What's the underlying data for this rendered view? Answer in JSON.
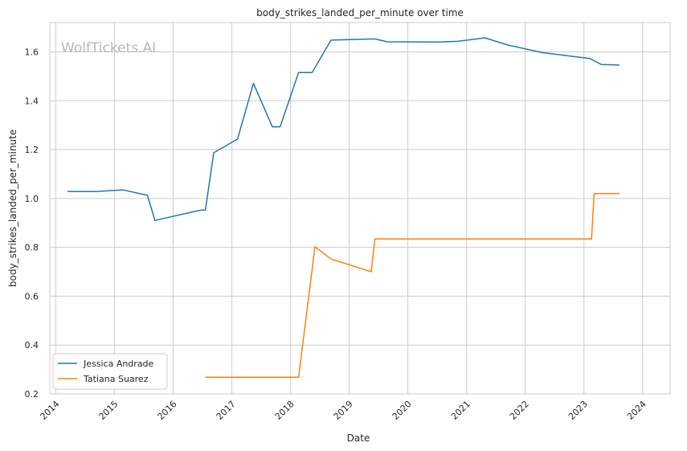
{
  "chart_data": {
    "type": "line",
    "title": "body_strikes_landed_per_minute over time",
    "xlabel": "Date",
    "ylabel": "body_strikes_landed_per_minute",
    "watermark": "WolfTickets.AI",
    "x_ticks": [
      "2014",
      "2015",
      "2016",
      "2017",
      "2018",
      "2019",
      "2020",
      "2021",
      "2022",
      "2023",
      "2024"
    ],
    "y_ticks": [
      "0.2",
      "0.4",
      "0.6",
      "0.8",
      "1.0",
      "1.2",
      "1.4",
      "1.6"
    ],
    "xlim": [
      "2013-11-25",
      "2024-06-20"
    ],
    "ylim": [
      0.2,
      1.72
    ],
    "grid": true,
    "legend_position": "lower-left",
    "series": [
      {
        "name": "Jessica Andrade",
        "color": "#1f77b4",
        "points": [
          [
            "2014-03-15",
            1.028
          ],
          [
            "2014-09-05",
            1.028
          ],
          [
            "2015-02-22",
            1.035
          ],
          [
            "2015-07-25",
            1.013
          ],
          [
            "2015-09-10",
            0.91
          ],
          [
            "2016-06-20",
            0.952
          ],
          [
            "2016-07-20",
            0.952
          ],
          [
            "2016-09-10",
            1.187
          ],
          [
            "2017-02-05",
            1.243
          ],
          [
            "2017-05-15",
            1.471
          ],
          [
            "2017-09-10",
            1.293
          ],
          [
            "2017-10-28",
            1.293
          ],
          [
            "2018-02-20",
            1.515
          ],
          [
            "2018-05-15",
            1.515
          ],
          [
            "2018-09-10",
            1.648
          ],
          [
            "2019-06-10",
            1.653
          ],
          [
            "2019-08-25",
            1.641
          ],
          [
            "2020-07-10",
            1.64
          ],
          [
            "2020-11-05",
            1.643
          ],
          [
            "2021-04-25",
            1.657
          ],
          [
            "2021-09-15",
            1.628
          ],
          [
            "2022-04-15",
            1.597
          ],
          [
            "2023-02-05",
            1.573
          ],
          [
            "2023-04-20",
            1.548
          ],
          [
            "2023-08-10",
            1.546
          ]
        ]
      },
      {
        "name": "Tatiana Suarez",
        "color": "#ff7f0e",
        "points": [
          [
            "2016-07-20",
            0.268
          ],
          [
            "2017-06-10",
            0.268
          ],
          [
            "2018-02-20",
            0.268
          ],
          [
            "2018-06-02",
            0.802
          ],
          [
            "2018-09-10",
            0.752
          ],
          [
            "2019-05-18",
            0.7
          ],
          [
            "2019-06-10",
            0.834
          ],
          [
            "2020-03-15",
            0.834
          ],
          [
            "2022-04-15",
            0.834
          ],
          [
            "2023-02-17",
            0.834
          ],
          [
            "2023-03-05",
            1.02
          ],
          [
            "2023-08-10",
            1.02
          ]
        ]
      }
    ]
  }
}
